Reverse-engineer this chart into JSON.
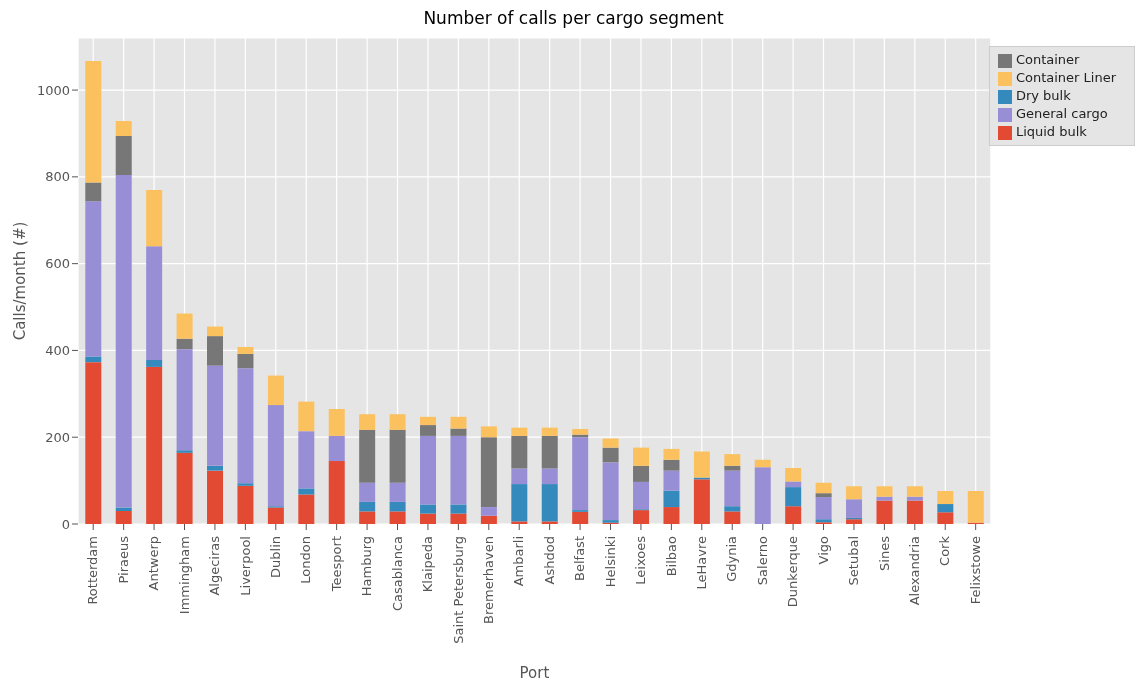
{
  "chart_data": {
    "type": "bar",
    "title": "Number of calls per cargo segment",
    "xlabel": "Port",
    "ylabel": "Calls/month (#)",
    "categories": [
      "Rotterdam",
      "Piraeus",
      "Antwerp",
      "Immingham",
      "Algeciras",
      "Liverpool",
      "Dublin",
      "London",
      "Teesport",
      "Hamburg",
      "Casablanca",
      "Klaipeda",
      "Saint Petersburg",
      "Bremerhaven",
      "Ambarli",
      "Ashdod",
      "Belfast",
      "Helsinki",
      "Leixoes",
      "Bilbao",
      "LeHavre",
      "Gdynia",
      "Salerno",
      "Dunkerque",
      "Vigo",
      "Setubal",
      "Sines",
      "Alexandria",
      "Cork",
      "Felixstowe"
    ],
    "stacked": true,
    "ylim": [
      0,
      1120
    ],
    "yticks": [
      0,
      200,
      400,
      600,
      800,
      1000
    ],
    "grid": true,
    "legend": "top right",
    "series": [
      {
        "name": "Liquid bulk",
        "color": "#e24a33",
        "values": [
          373,
          30,
          362,
          164,
          123,
          88,
          38,
          68,
          145,
          29,
          29,
          24,
          24,
          19,
          6,
          6,
          28,
          3,
          32,
          39,
          103,
          29,
          0,
          41,
          4,
          11,
          54,
          54,
          27,
          3
        ]
      },
      {
        "name": "Dry bulk",
        "color": "#348abd",
        "values": [
          13,
          8,
          16,
          6,
          11,
          6,
          3,
          14,
          0,
          22,
          22,
          21,
          21,
          0,
          86,
          86,
          4,
          6,
          2,
          38,
          4,
          12,
          0,
          44,
          7,
          3,
          0,
          0,
          19,
          0
        ]
      },
      {
        "name": "General cargo",
        "color": "#988ed5",
        "values": [
          358,
          766,
          262,
          233,
          231,
          265,
          233,
          132,
          58,
          44,
          44,
          158,
          158,
          20,
          36,
          36,
          168,
          133,
          63,
          46,
          0,
          82,
          131,
          13,
          51,
          43,
          9,
          9,
          0,
          0
        ]
      },
      {
        "name": "Container",
        "color": "#777777",
        "values": [
          43,
          90,
          0,
          24,
          68,
          33,
          0,
          0,
          0,
          122,
          122,
          25,
          17,
          161,
          75,
          75,
          6,
          34,
          37,
          25,
          0,
          11,
          0,
          0,
          9,
          0,
          0,
          0,
          0,
          0
        ]
      },
      {
        "name": "Container Liner",
        "color": "#fbc15e",
        "values": [
          280,
          35,
          130,
          58,
          22,
          16,
          68,
          68,
          62,
          36,
          36,
          19,
          27,
          25,
          19,
          19,
          13,
          21,
          42,
          25,
          60,
          27,
          17,
          31,
          24,
          30,
          24,
          24,
          30,
          73
        ]
      }
    ]
  }
}
